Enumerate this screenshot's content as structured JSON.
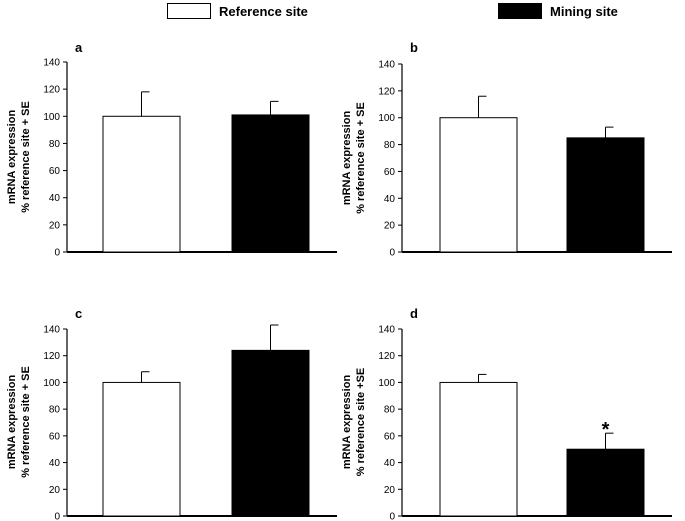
{
  "legend": {
    "items": [
      {
        "label": "Reference site",
        "fill": "#ffffff"
      },
      {
        "label": "Mining site",
        "fill": "#000000"
      }
    ]
  },
  "colors": {
    "reference": "#ffffff",
    "mining": "#000000",
    "axis": "#000000"
  },
  "chart_data": [
    {
      "type": "bar",
      "panel": "a",
      "ylabel": [
        "mRNA expression",
        "% reference site + SE"
      ],
      "ylim": [
        0,
        140
      ],
      "yticks": [
        0,
        20,
        40,
        60,
        80,
        100,
        120,
        140
      ],
      "series": [
        {
          "name": "Reference site",
          "value": 100,
          "error": 18
        },
        {
          "name": "Mining site",
          "value": 101,
          "error": 10
        }
      ],
      "annotations": []
    },
    {
      "type": "bar",
      "panel": "b",
      "ylabel": [
        "mRNA expression",
        "% reference site + SE"
      ],
      "ylim": [
        0,
        140
      ],
      "yticks": [
        0,
        20,
        40,
        60,
        80,
        100,
        120,
        140
      ],
      "series": [
        {
          "name": "Reference site",
          "value": 100,
          "error": 16
        },
        {
          "name": "Mining site",
          "value": 85,
          "error": 8
        }
      ],
      "annotations": []
    },
    {
      "type": "bar",
      "panel": "c",
      "ylabel": [
        "mRNA expression",
        "% reference site + SE"
      ],
      "ylim": [
        0,
        140
      ],
      "yticks": [
        0,
        20,
        40,
        60,
        80,
        100,
        120,
        140
      ],
      "series": [
        {
          "name": "Reference site",
          "value": 100,
          "error": 8
        },
        {
          "name": "Mining site",
          "value": 124,
          "error": 19
        }
      ],
      "annotations": []
    },
    {
      "type": "bar",
      "panel": "d",
      "ylabel": [
        "mRNA expression",
        "% reference site +SE"
      ],
      "ylim": [
        0,
        140
      ],
      "yticks": [
        0,
        20,
        40,
        60,
        80,
        100,
        120,
        140
      ],
      "series": [
        {
          "name": "Reference site",
          "value": 100,
          "error": 6
        },
        {
          "name": "Mining site",
          "value": 50,
          "error": 12
        }
      ],
      "annotations": [
        {
          "bar": 1,
          "text": "*"
        }
      ]
    }
  ]
}
